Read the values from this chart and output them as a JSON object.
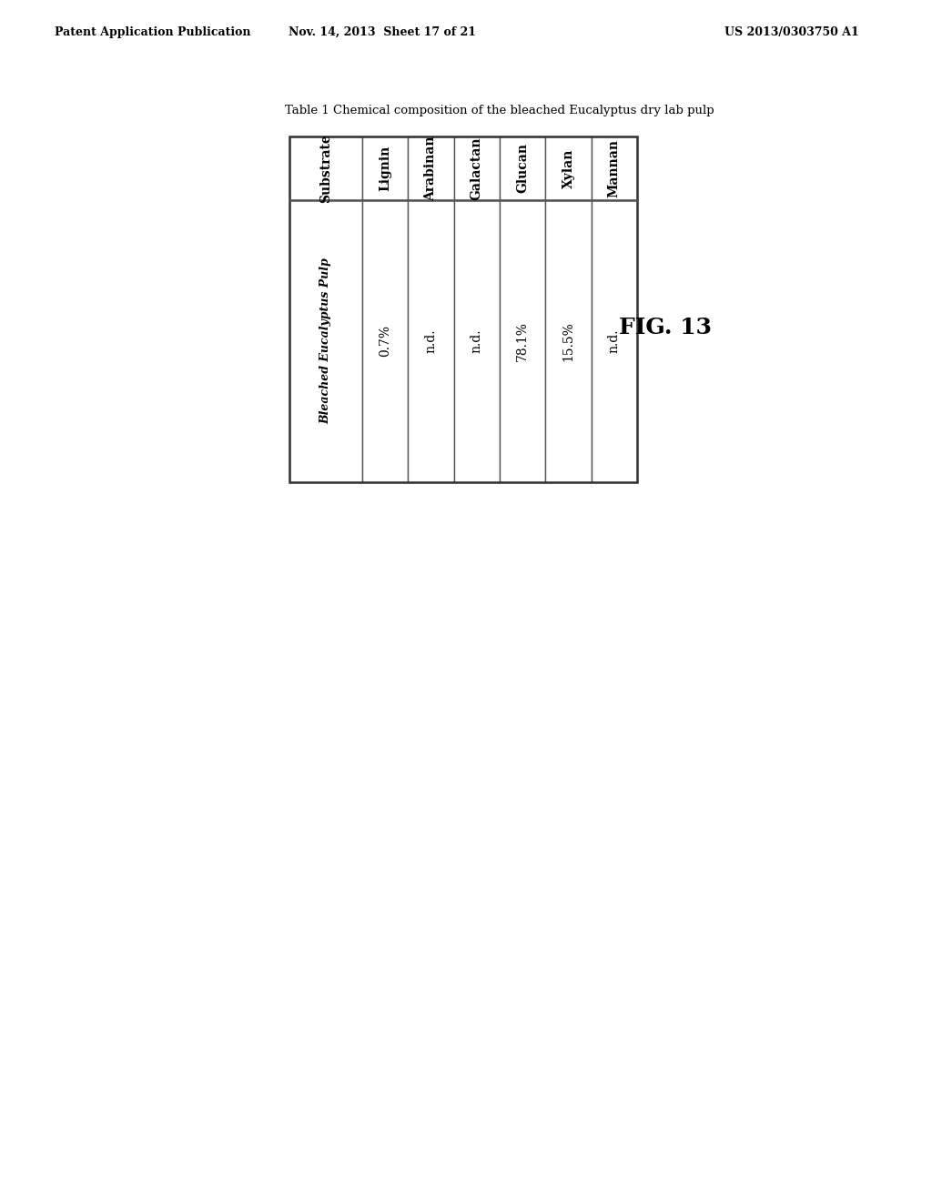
{
  "page_header_left": "Patent Application Publication",
  "page_header_mid": "Nov. 14, 2013  Sheet 17 of 21",
  "page_header_right": "US 2013/0303750 A1",
  "table_title": "Table 1 Chemical composition of the bleached Eucalyptus dry lab pulp",
  "columns": [
    "Substrate",
    "Lignin",
    "Arabinan",
    "Galactan",
    "Glucan",
    "Xylan",
    "Mannan"
  ],
  "row_label": "Bleached Eucalyptus Pulp",
  "row_values": [
    "0.7%",
    "n.d.",
    "n.d.",
    "78.1%",
    "15.5%",
    "n.d."
  ],
  "fig_label": "FIG. 13",
  "background_color": "#ffffff",
  "text_color": "#000000",
  "header_font_size": 9,
  "table_font_size": 10,
  "fig_label_font_size": 18
}
